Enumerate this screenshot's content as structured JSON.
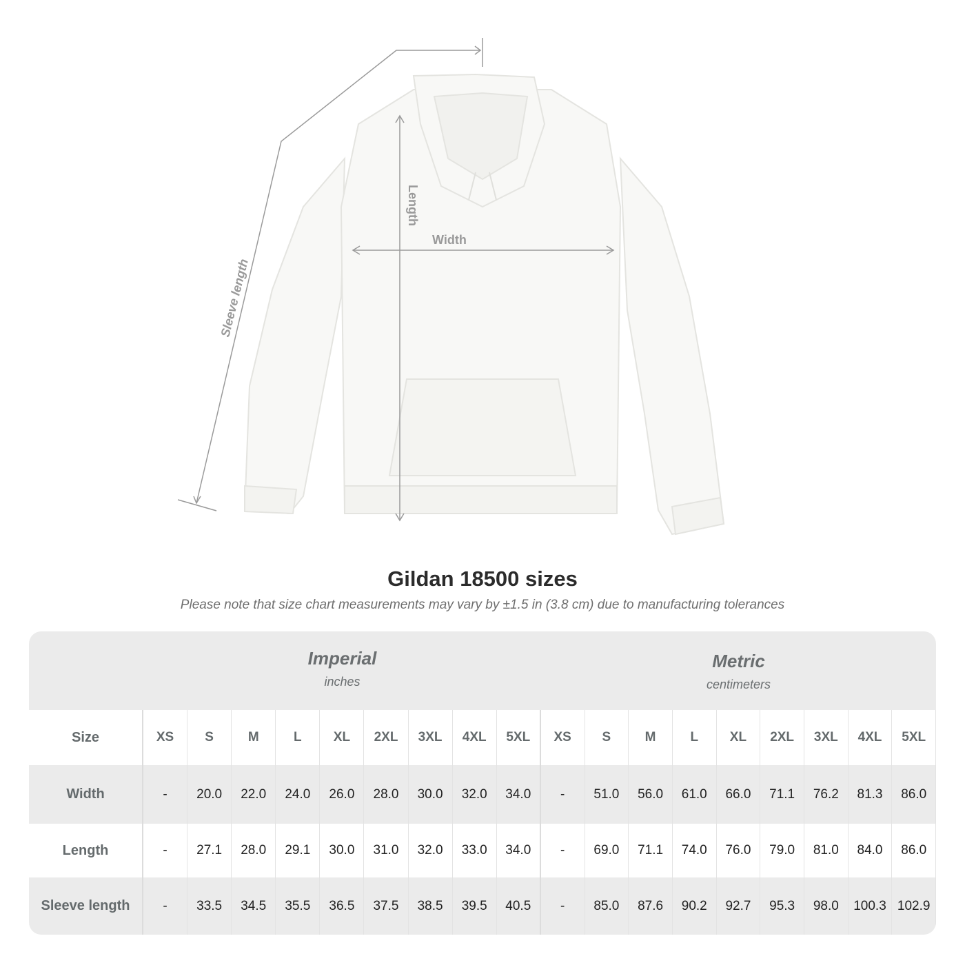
{
  "illustration": {
    "labels": {
      "length": "Length",
      "width": "Width",
      "sleeve": "Sleeve length"
    },
    "measure_color": "#9a9a9a"
  },
  "title": "Gildan 18500 sizes",
  "note": "Please note that size chart measurements may vary by ±1.5 in (3.8 cm) due to manufacturing tolerances",
  "table": {
    "imperial": {
      "title": "Imperial",
      "unit": "inches"
    },
    "metric": {
      "title": "Metric",
      "unit": "centimeters"
    },
    "size_label": "Size",
    "sizes": [
      "XS",
      "S",
      "M",
      "L",
      "XL",
      "2XL",
      "3XL",
      "4XL",
      "5XL"
    ],
    "rows": [
      {
        "label": "Width",
        "imperial": [
          "-",
          "20.0",
          "22.0",
          "24.0",
          "26.0",
          "28.0",
          "30.0",
          "32.0",
          "34.0"
        ],
        "metric": [
          "-",
          "51.0",
          "56.0",
          "61.0",
          "66.0",
          "71.1",
          "76.2",
          "81.3",
          "86.0"
        ]
      },
      {
        "label": "Length",
        "imperial": [
          "-",
          "27.1",
          "28.0",
          "29.1",
          "30.0",
          "31.0",
          "32.0",
          "33.0",
          "34.0"
        ],
        "metric": [
          "-",
          "69.0",
          "71.1",
          "74.0",
          "76.0",
          "79.0",
          "81.0",
          "84.0",
          "86.0"
        ]
      },
      {
        "label": "Sleeve length",
        "imperial": [
          "-",
          "33.5",
          "34.5",
          "35.5",
          "36.5",
          "37.5",
          "38.5",
          "39.5",
          "40.5"
        ],
        "metric": [
          "-",
          "85.0",
          "87.6",
          "90.2",
          "92.7",
          "95.3",
          "98.0",
          "100.3",
          "102.9"
        ]
      }
    ]
  }
}
